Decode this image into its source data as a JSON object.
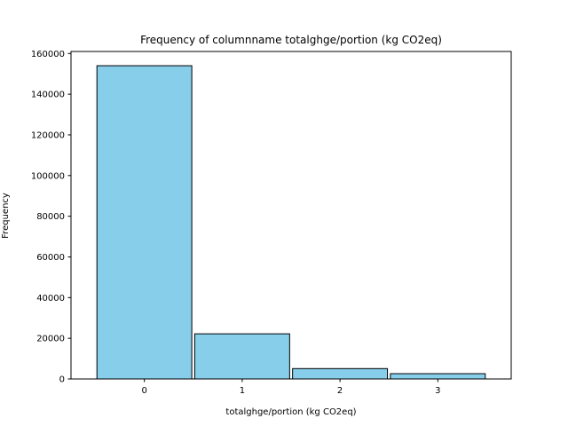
{
  "chart_data": {
    "type": "bar",
    "title": "Frequency of columnname totalghge/portion (kg CO2eq)",
    "xlabel": "totalghge/portion (kg CO2eq)",
    "ylabel": "Frequency",
    "categories": [
      "0",
      "1",
      "2",
      "3"
    ],
    "x": [
      0,
      1,
      2,
      3
    ],
    "values": [
      154000,
      22200,
      5100,
      2600
    ],
    "xlim": [
      -0.75,
      3.75
    ],
    "ylim": [
      0,
      161000
    ],
    "yticks": [
      0,
      20000,
      40000,
      60000,
      80000,
      100000,
      120000,
      140000,
      160000
    ],
    "ytick_labels": [
      "0",
      "20000",
      "40000",
      "60000",
      "80000",
      "100000",
      "120000",
      "140000",
      "160000"
    ],
    "bar_color": "#87ceeb",
    "edge_color": "#000000",
    "grid": false,
    "legend": "none"
  }
}
